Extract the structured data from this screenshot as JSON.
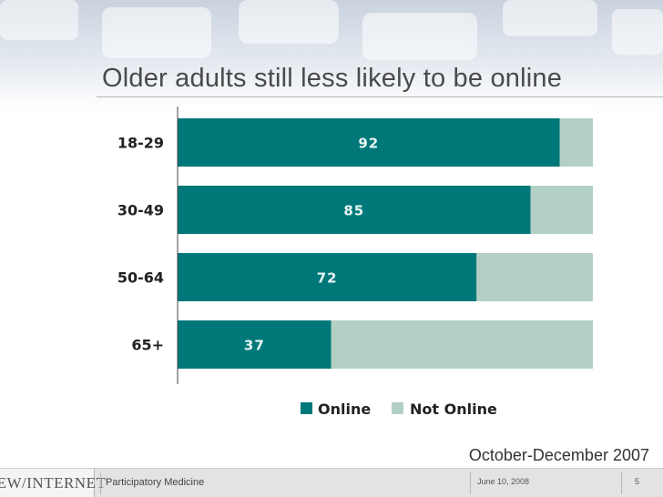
{
  "slide": {
    "title": "Older adults still less likely to be online",
    "date_range": "October-December 2007"
  },
  "footer": {
    "logo_text": "PEW/INTERNET",
    "presentation": "Participatory Medicine",
    "date": "June 10, 2008",
    "page": "5"
  },
  "colors": {
    "online": "#00787a",
    "not_online": "#b3d0c4"
  },
  "chart_data": {
    "type": "bar",
    "orientation": "horizontal",
    "stacked": true,
    "categories": [
      "18-29",
      "30-49",
      "50-64",
      "65+"
    ],
    "series": [
      {
        "name": "Online",
        "values": [
          92,
          85,
          72,
          37
        ],
        "data_labels": [
          "92",
          "85",
          "72",
          "37"
        ]
      },
      {
        "name": "Not Online",
        "values": [
          8,
          15,
          28,
          63
        ]
      }
    ],
    "xlim": [
      0,
      100
    ],
    "grid": false,
    "legend": "bottom"
  }
}
